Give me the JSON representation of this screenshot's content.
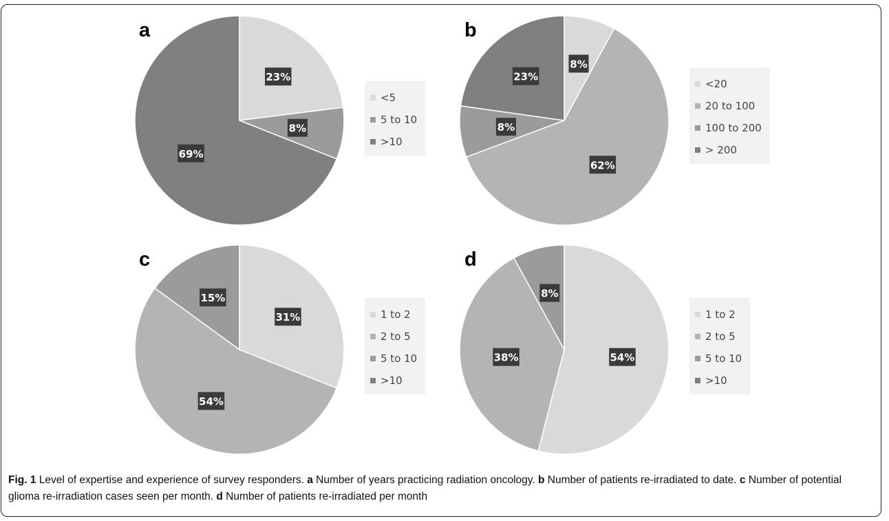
{
  "caption": {
    "fig_label": "Fig. 1",
    "intro": " Level of expertise and experience of survey responders. ",
    "parts": [
      {
        "letter": "a",
        "text": " Number of years practicing radiation oncology. "
      },
      {
        "letter": "b",
        "text": " Number of patients re-irradiated to date. "
      },
      {
        "letter": "c",
        "text": " Number of potential glioma re-irradiation cases seen per month. "
      },
      {
        "letter": "d",
        "text": " Number of patients re-irradiated per month"
      }
    ]
  },
  "colors": {
    "palette": [
      "#d9d9d9",
      "#b4b4b4",
      "#9b9b9b",
      "#808080"
    ],
    "label_bg": "#3a3a3a",
    "label_text": "#ffffff",
    "legend_bg": "#f2f2f2"
  },
  "chart_data": [
    {
      "type": "pie",
      "panel": "a",
      "categories": [
        "<5",
        "5 to 10",
        ">10"
      ],
      "values": [
        23,
        8,
        69
      ],
      "data_labels": [
        "23%",
        "8%",
        "69%"
      ],
      "color_index": [
        0,
        2,
        3
      ],
      "legend_placement": "right"
    },
    {
      "type": "pie",
      "panel": "b",
      "categories": [
        "<20",
        "20 to 100",
        "100 to 200",
        "> 200"
      ],
      "values": [
        8,
        62,
        8,
        23
      ],
      "data_labels": [
        "8%",
        "62%",
        "8%",
        "23%"
      ],
      "color_index": [
        0,
        1,
        2,
        3
      ],
      "legend_placement": "right"
    },
    {
      "type": "pie",
      "panel": "c",
      "categories": [
        "1 to 2",
        "2 to 5",
        "5 to 10",
        ">10"
      ],
      "values": [
        31,
        54,
        15,
        0
      ],
      "data_labels": [
        "31%",
        "54%",
        "15%",
        ""
      ],
      "color_index": [
        0,
        1,
        2,
        3
      ],
      "legend_placement": "right"
    },
    {
      "type": "pie",
      "panel": "d",
      "categories": [
        "1 to 2",
        "2 to 5",
        "5 to 10",
        ">10"
      ],
      "values": [
        54,
        38,
        8,
        0
      ],
      "data_labels": [
        "54%",
        "38%",
        "8%",
        ""
      ],
      "color_index": [
        0,
        1,
        2,
        3
      ],
      "legend_placement": "right"
    }
  ]
}
